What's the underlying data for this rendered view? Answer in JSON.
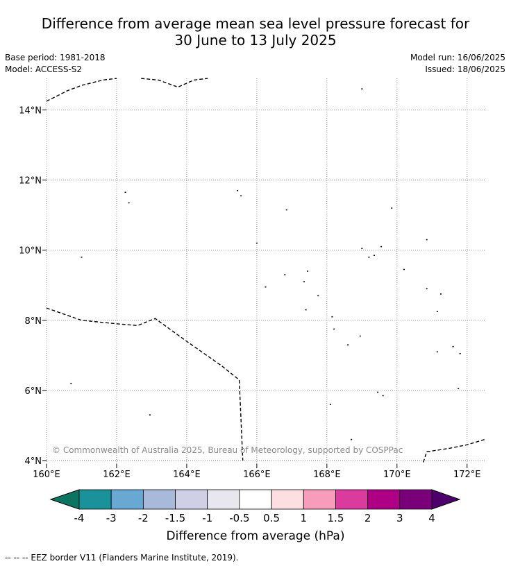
{
  "title": {
    "line1": "Difference from average mean sea level pressure forecast for",
    "line2": "30 June to 13 July 2025"
  },
  "meta_left": {
    "base_period": "Base period: 1981-2018",
    "model": "Model: ACCESS-S2"
  },
  "meta_right": {
    "model_run": "Model run: 16/06/2025",
    "issued": "Issued: 18/06/2025"
  },
  "map": {
    "lon_range": [
      160,
      172.5
    ],
    "lat_range": [
      3.9,
      14.9
    ],
    "x_ticks": [
      {
        "value": 160,
        "label": "160°E"
      },
      {
        "value": 162,
        "label": "162°E"
      },
      {
        "value": 164,
        "label": "164°E"
      },
      {
        "value": 166,
        "label": "166°E"
      },
      {
        "value": 168,
        "label": "168°E"
      },
      {
        "value": 170,
        "label": "170°E"
      },
      {
        "value": 172,
        "label": "172°E"
      }
    ],
    "y_ticks": [
      {
        "value": 4,
        "label": "4°N"
      },
      {
        "value": 6,
        "label": "6°N"
      },
      {
        "value": 8,
        "label": "8°N"
      },
      {
        "value": 10,
        "label": "10°N"
      },
      {
        "value": 12,
        "label": "12°N"
      },
      {
        "value": 14,
        "label": "14°N"
      }
    ],
    "gridlines": true,
    "fill_color": "#ffffff",
    "copyright": "© Commonwealth of Australia 2025, Bureau of Meteorology, supported by COSPPac",
    "eez_borders": [
      [
        [
          160,
          14.25
        ],
        [
          160.6,
          14.55
        ],
        [
          161,
          14.7
        ],
        [
          161.6,
          14.85
        ],
        [
          162,
          14.9
        ]
      ],
      [
        [
          162.7,
          14.9
        ],
        [
          163.2,
          14.85
        ],
        [
          163.75,
          14.65
        ],
        [
          164.2,
          14.85
        ],
        [
          164.6,
          14.9
        ]
      ],
      [
        [
          160,
          8.35
        ],
        [
          161,
          8.0
        ],
        [
          162,
          7.9
        ],
        [
          162.6,
          7.85
        ],
        [
          163.1,
          8.05
        ],
        [
          164,
          7.4
        ],
        [
          165,
          6.7
        ],
        [
          165.5,
          6.3
        ],
        [
          165.6,
          4.0
        ]
      ],
      [
        [
          170.75,
          3.95
        ],
        [
          170.85,
          4.25
        ],
        [
          171.5,
          4.35
        ],
        [
          172,
          4.45
        ],
        [
          172.5,
          4.6
        ]
      ]
    ],
    "islands": [
      {
        "lon": 169.0,
        "lat": 14.6
      },
      {
        "lon": 162.25,
        "lat": 11.65
      },
      {
        "lon": 162.35,
        "lat": 11.35
      },
      {
        "lon": 165.45,
        "lat": 11.7
      },
      {
        "lon": 165.55,
        "lat": 11.55
      },
      {
        "lon": 166.85,
        "lat": 11.15
      },
      {
        "lon": 169.85,
        "lat": 11.2
      },
      {
        "lon": 166.0,
        "lat": 10.2
      },
      {
        "lon": 170.85,
        "lat": 10.3
      },
      {
        "lon": 161.0,
        "lat": 9.8
      },
      {
        "lon": 169.0,
        "lat": 10.05
      },
      {
        "lon": 169.55,
        "lat": 10.1
      },
      {
        "lon": 169.2,
        "lat": 9.8
      },
      {
        "lon": 169.35,
        "lat": 9.85
      },
      {
        "lon": 170.2,
        "lat": 9.45
      },
      {
        "lon": 166.8,
        "lat": 9.3
      },
      {
        "lon": 167.45,
        "lat": 9.4
      },
      {
        "lon": 167.35,
        "lat": 9.1
      },
      {
        "lon": 166.25,
        "lat": 8.95
      },
      {
        "lon": 170.85,
        "lat": 8.9
      },
      {
        "lon": 171.25,
        "lat": 8.75
      },
      {
        "lon": 167.75,
        "lat": 8.7
      },
      {
        "lon": 167.4,
        "lat": 8.3
      },
      {
        "lon": 171.15,
        "lat": 8.25
      },
      {
        "lon": 168.15,
        "lat": 8.1
      },
      {
        "lon": 168.2,
        "lat": 7.75
      },
      {
        "lon": 168.95,
        "lat": 7.55
      },
      {
        "lon": 168.6,
        "lat": 7.3
      },
      {
        "lon": 171.15,
        "lat": 7.1
      },
      {
        "lon": 171.8,
        "lat": 7.05
      },
      {
        "lon": 171.6,
        "lat": 7.25
      },
      {
        "lon": 160.7,
        "lat": 6.2
      },
      {
        "lon": 171.75,
        "lat": 6.05
      },
      {
        "lon": 169.6,
        "lat": 5.85
      },
      {
        "lon": 169.45,
        "lat": 5.95
      },
      {
        "lon": 168.1,
        "lat": 5.6
      },
      {
        "lon": 162.95,
        "lat": 5.3
      },
      {
        "lon": 168.7,
        "lat": 4.6
      }
    ]
  },
  "colorbar": {
    "ticks": [
      "-4",
      "-3",
      "-2",
      "-1.5",
      "-1",
      "-0.5",
      "0.5",
      "1",
      "1.5",
      "2",
      "3",
      "4"
    ],
    "colors": [
      "#1b9199",
      "#6aa8d4",
      "#a8b9dc",
      "#cfcfe6",
      "#e8e6ee",
      "#ffffff",
      "#fddfe1",
      "#f79cba",
      "#dc3b9e",
      "#ad0085",
      "#7a007a"
    ],
    "under_color": "#0b7560",
    "over_color": "#4d006b",
    "label": "Difference from average (hPa)"
  },
  "footer": "-- -- -- EEZ border V11 (Flanders Marine Institute, 2019)."
}
